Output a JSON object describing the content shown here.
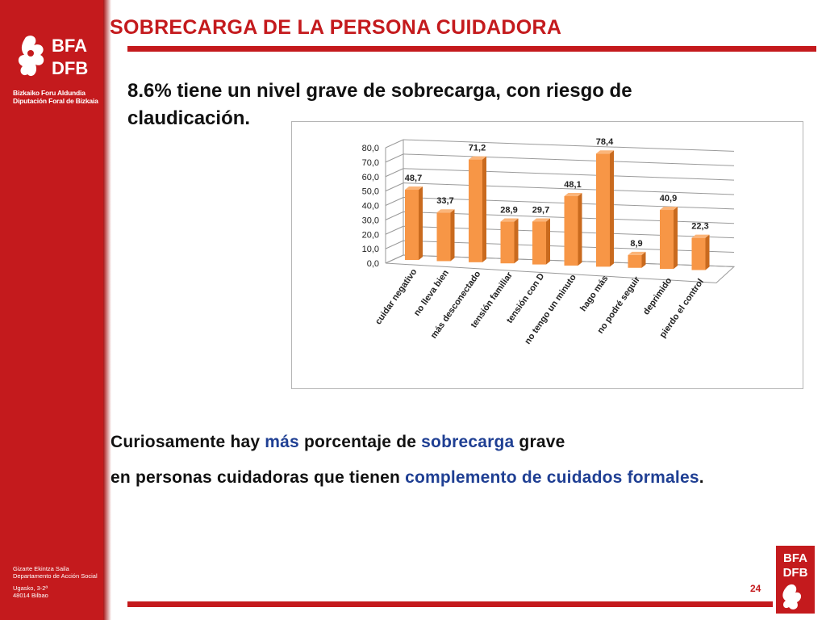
{
  "sidebar": {
    "brand_line1": "Bizkaiko Foru Aldundia",
    "brand_line2": "Diputación Foral de Bizkaia",
    "dept_line1": "Gizarte Ekintza Saila",
    "dept_line2": "Departamento de Acción Social",
    "dept_line3": "Ugasko, 3-2ª",
    "dept_line4": "48014 Bilbao",
    "logo_line1": "BFA",
    "logo_line2": "DFB"
  },
  "header": {
    "title": "SOBRECARGA DE LA PERSONA CUIDADORA"
  },
  "headline": "8.6% tiene  un nivel grave de sobrecarga, con riesgo de claudicación.",
  "note": {
    "l1_a": "Curiosamente hay ",
    "l1_b": "más",
    "l1_c": " porcentaje de ",
    "l1_d": "sobrecarga",
    "l1_e": " grave",
    "l2_a": "en personas cuidadoras que tienen ",
    "l2_b": "complemento de cuidados formales",
    "l2_c": "."
  },
  "footer": {
    "page_number": "24",
    "logo_line1": "BFA",
    "logo_line2": "DFB"
  },
  "colors": {
    "brand_red": "#c41a1d",
    "bar_orange": "#f79646",
    "highlight_blue": "#1f3f93"
  },
  "chart_data": {
    "type": "bar",
    "categories": [
      "cuidar negativo",
      "no lleva bien",
      "más desconectado",
      "tensión familiar",
      "tensión con D",
      "no tengo un minuto",
      "hago más",
      "no podré seguir",
      "deprimido",
      "pierdo el control"
    ],
    "values": [
      48.7,
      33.7,
      71.2,
      28.9,
      29.7,
      48.1,
      78.4,
      8.9,
      40.9,
      22.3
    ],
    "value_labels": [
      "48,7",
      "33,7",
      "71,2",
      "28,9",
      "29,7",
      "48,1",
      "78,4",
      "8,9",
      "40,9",
      "22,3"
    ],
    "y_ticks": [
      "0,0",
      "10,0",
      "20,0",
      "30,0",
      "40,0",
      "50,0",
      "60,0",
      "70,0",
      "80,0"
    ],
    "ylim": [
      0,
      80
    ],
    "grid": true,
    "style": "3d-column"
  }
}
